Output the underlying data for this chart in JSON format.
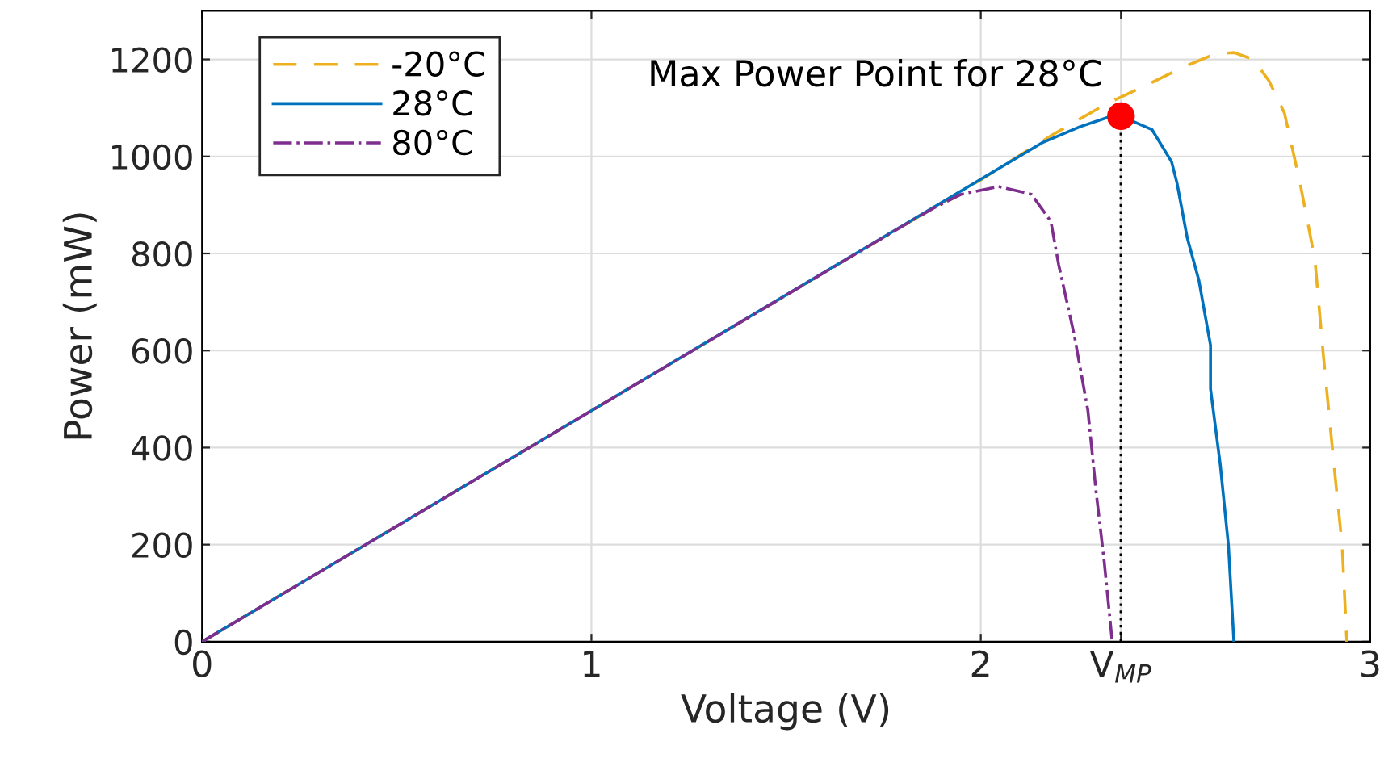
{
  "chart_data": {
    "type": "line",
    "xlabel": "Voltage (V)",
    "ylabel": "Power (mW)",
    "xlim": [
      0,
      3
    ],
    "ylim": [
      0,
      1300
    ],
    "xticks": [
      0,
      1,
      2,
      {
        "value": 2.36,
        "label": "V$_{MP}$"
      },
      3
    ],
    "yticks": [
      0,
      200,
      400,
      600,
      800,
      1000,
      1200
    ],
    "grid": true,
    "legend": "top left",
    "marker": "none",
    "annotations": [
      {
        "text": "Max Power Point for 28°C",
        "x": 2.36,
        "y": 1083
      }
    ],
    "series": [
      {
        "name": "-20°C",
        "color": "#edb120",
        "line_style": "dashed",
        "x": [
          0,
          1,
          2,
          2.183,
          2.317,
          2.42,
          2.517,
          2.6,
          2.65,
          2.7,
          2.74,
          2.78,
          2.82,
          2.858,
          2.88,
          2.907,
          2.928,
          2.94
        ],
        "values": [
          0,
          476,
          952,
          1044,
          1106,
          1145,
          1183,
          1211,
          1214,
          1200,
          1156,
          1089,
          945,
          788,
          588,
          365,
          198,
          0
        ]
      },
      {
        "name": "28°C",
        "color": "#0072bd",
        "line_style": "solid",
        "x": [
          0,
          1,
          2,
          2.157,
          2.254,
          2.324,
          2.36,
          2.44,
          2.49,
          2.504,
          2.53,
          2.56,
          2.59,
          2.59,
          2.615,
          2.636,
          2.65
        ],
        "values": [
          0,
          476,
          953,
          1028,
          1061,
          1080,
          1083,
          1055,
          989,
          945,
          833,
          745,
          611,
          521,
          365,
          198,
          0
        ]
      },
      {
        "name": "80°C",
        "color": "#7e2f8e",
        "line_style": "dashdot",
        "x": [
          0,
          1,
          1.796,
          1.88,
          1.95,
          2.046,
          2.13,
          2.18,
          2.2,
          2.24,
          2.275,
          2.296,
          2.317,
          2.3375
        ],
        "values": [
          0,
          476,
          855,
          894,
          922,
          938,
          922,
          866,
          777,
          632,
          477,
          310,
          165,
          0
        ]
      },
      {
        "type": "line",
        "color": "#000000",
        "line_style": "dotted",
        "x": [
          2.36,
          2.36
        ],
        "values": [
          0,
          1083
        ]
      },
      {
        "type": "scatter",
        "color": "#ff0000",
        "marker": "circle",
        "x": [
          2.36
        ],
        "values": [
          1083
        ]
      }
    ]
  }
}
